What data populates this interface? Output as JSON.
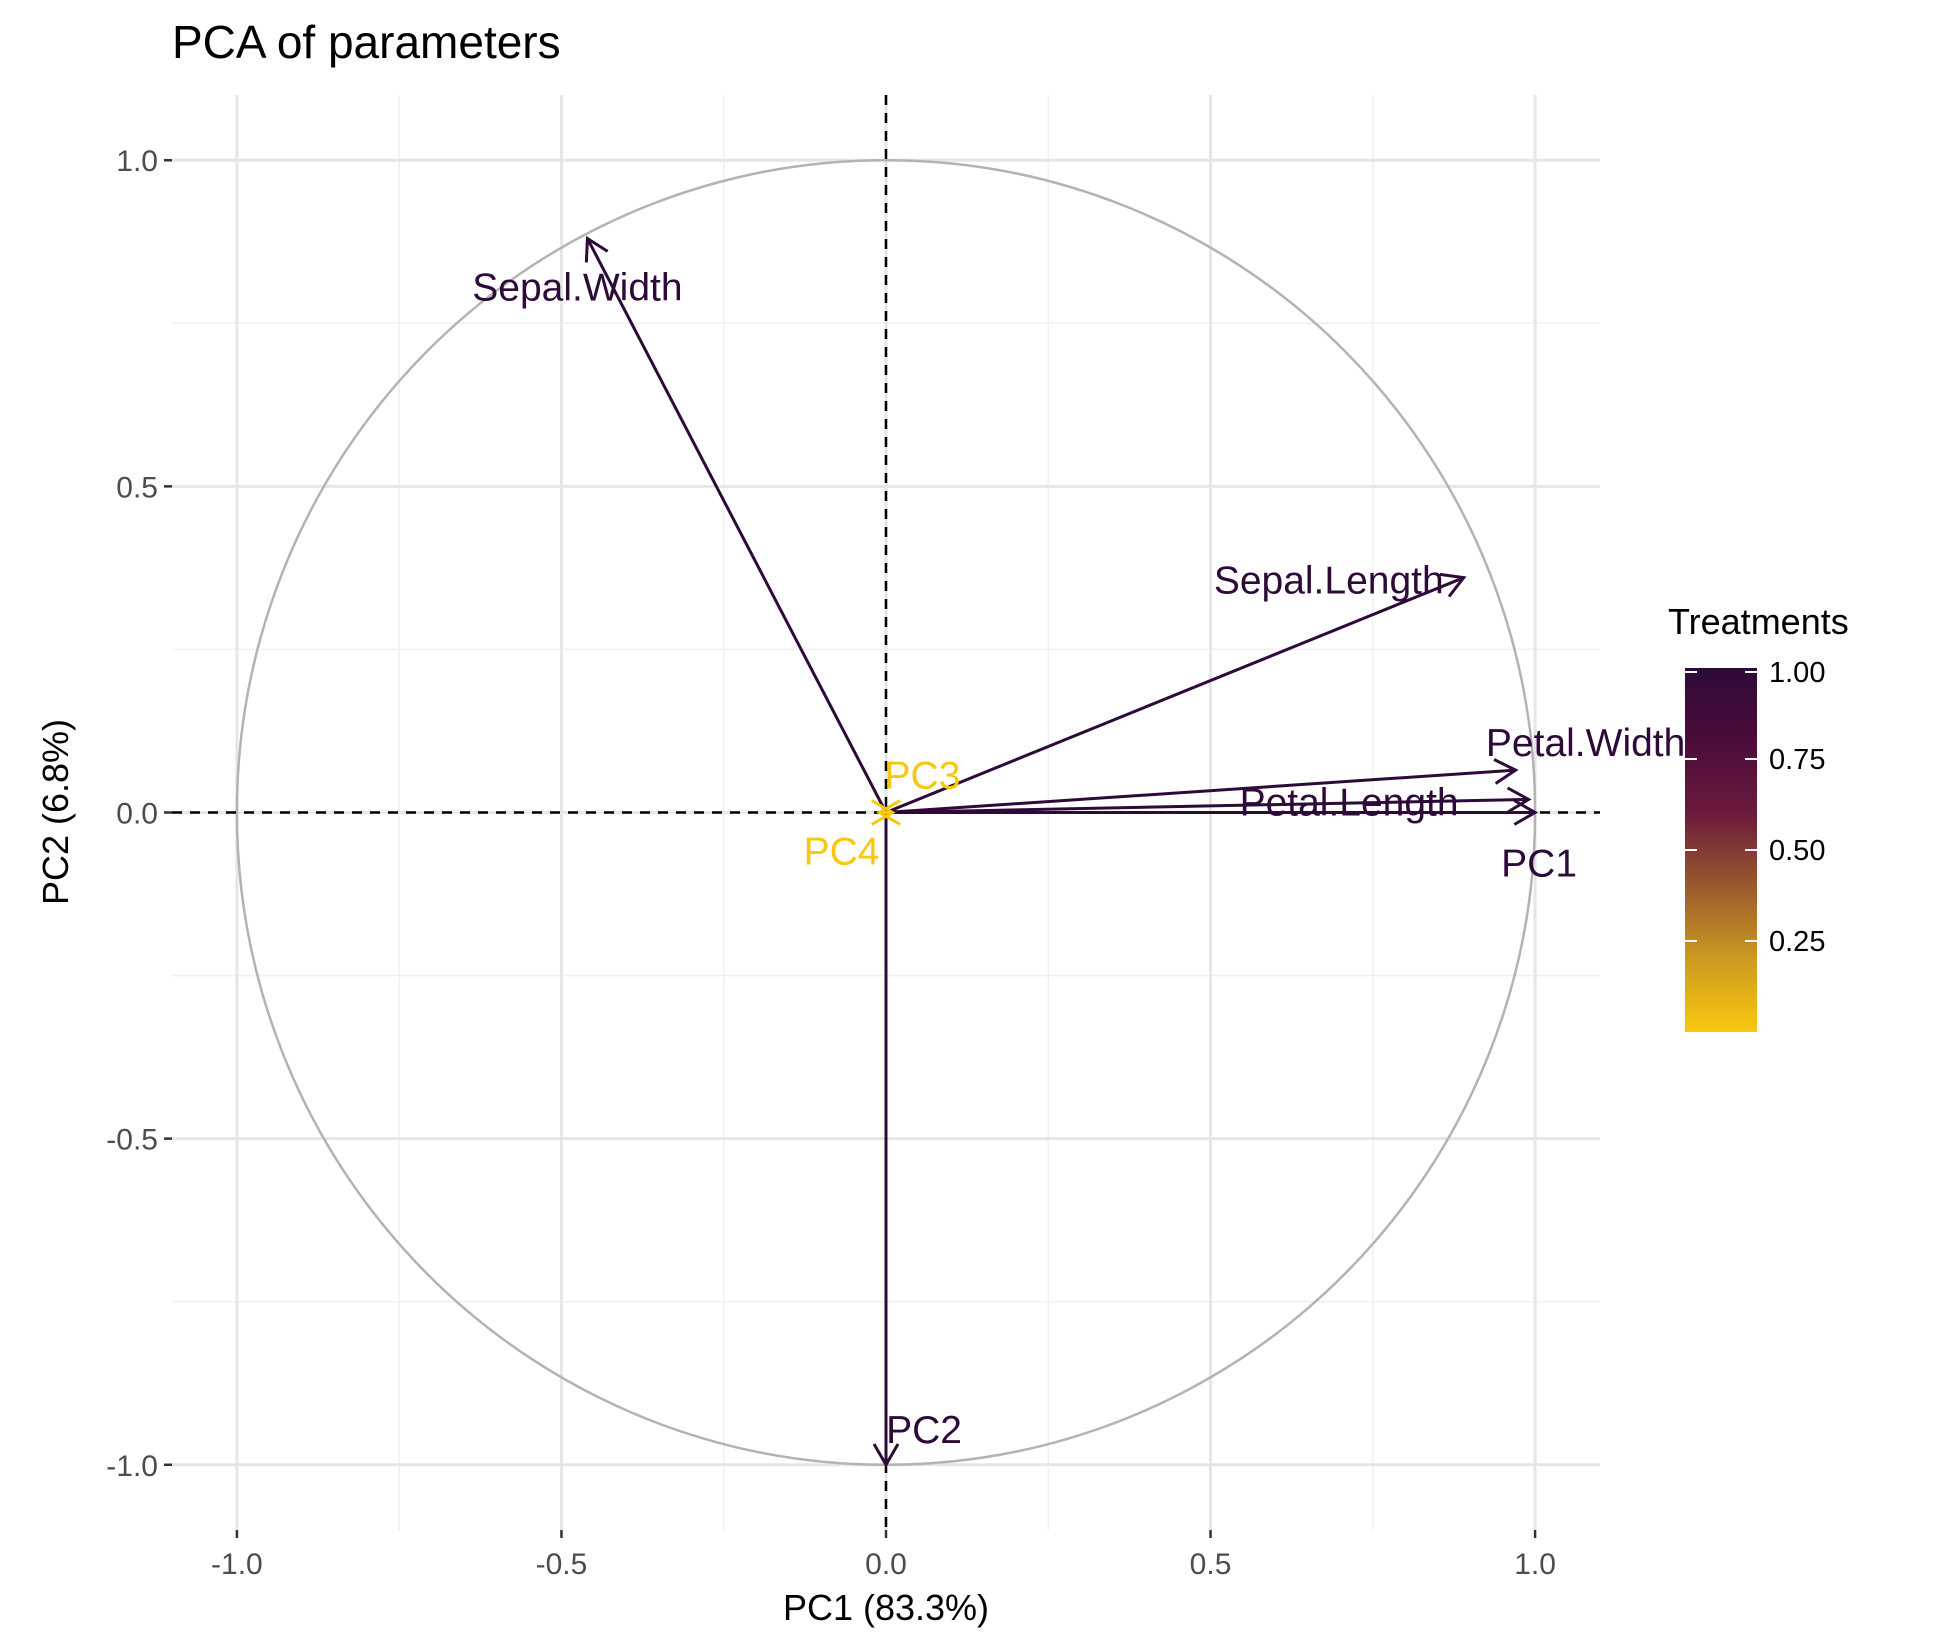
{
  "chart_data": {
    "type": "scatter",
    "title": "PCA of parameters",
    "xlabel": "PC1 (83.3%)",
    "ylabel": "PC2 (6.8%)",
    "xlim": [
      -1.1,
      1.1
    ],
    "ylim": [
      -1.1,
      1.1
    ],
    "x_ticks": [
      -1.0,
      -0.5,
      0.0,
      0.5,
      1.0
    ],
    "y_ticks": [
      -1.0,
      -0.5,
      0.0,
      0.5,
      1.0
    ],
    "x_tick_labels": [
      "-1.0",
      "-0.5",
      "0.0",
      "0.5",
      "1.0"
    ],
    "y_tick_labels": [
      "-1.0",
      "-0.5",
      "0.0",
      "0.5",
      "1.0"
    ],
    "grid": true,
    "reference_lines": {
      "x": 0,
      "y": 0,
      "style": "dashed"
    },
    "unit_circle": true,
    "vectors": [
      {
        "label": "Sepal.Width",
        "x": -0.46,
        "y": 0.88,
        "treatment": 1.0
      },
      {
        "label": "Sepal.Length",
        "x": 0.89,
        "y": 0.36,
        "treatment": 1.0
      },
      {
        "label": "Petal.Width",
        "x": 0.97,
        "y": 0.065,
        "treatment": 1.0
      },
      {
        "label": "Petal.Length",
        "x": 0.99,
        "y": 0.02,
        "treatment": 1.0
      },
      {
        "label": "PC1",
        "x": 1.0,
        "y": 0.0,
        "treatment": 1.0
      },
      {
        "label": "PC2",
        "x": 0.0,
        "y": -1.0,
        "treatment": 1.0
      },
      {
        "label": "PC3",
        "x": 0.01,
        "y": 0.0,
        "treatment": 0.0
      },
      {
        "label": "PC4",
        "x": -0.01,
        "y": 0.0,
        "treatment": 0.0
      }
    ],
    "legend": {
      "title": "Treatments",
      "type": "colorbar",
      "position": "right",
      "range": [
        0.0,
        1.0
      ],
      "breaks": [
        "1.00",
        "0.75",
        "0.50",
        "0.25"
      ],
      "colors": [
        "#2d0a38",
        "#4b0c3b",
        "#6b1a3c",
        "#9a5a2d",
        "#cc9a20",
        "#f9c80e"
      ]
    }
  }
}
